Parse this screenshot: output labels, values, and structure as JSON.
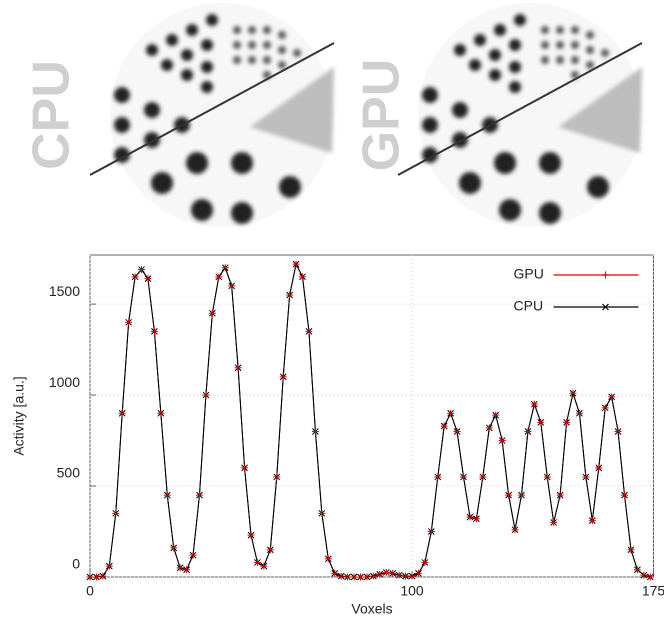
{
  "image_labels": [
    "CPU",
    "GPU"
  ],
  "chart_data": {
    "type": "line",
    "xlabel": "Voxels",
    "ylabel": "Activity [a.u.]",
    "x": [
      0,
      2,
      4,
      6,
      8,
      10,
      12,
      14,
      16,
      18,
      20,
      22,
      24,
      26,
      28,
      30,
      32,
      34,
      36,
      38,
      40,
      42,
      44,
      46,
      48,
      50,
      52,
      54,
      56,
      58,
      60,
      62,
      64,
      66,
      68,
      70,
      72,
      74,
      76,
      78,
      80,
      82,
      84,
      86,
      88,
      90,
      92,
      94,
      96,
      98,
      100,
      102,
      104,
      106,
      108,
      110,
      112,
      114,
      116,
      118,
      120,
      122,
      124,
      126,
      128,
      130,
      132,
      134,
      136,
      138,
      140,
      142,
      144,
      146,
      148,
      150,
      152,
      154,
      156,
      158,
      160,
      162,
      164,
      166,
      168,
      170,
      172,
      174
    ],
    "series": [
      {
        "name": "GPU",
        "color": "#e00000",
        "marker": "plus",
        "values": [
          0,
          0,
          5,
          60,
          350,
          900,
          1400,
          1650,
          1690,
          1640,
          1350,
          900,
          450,
          160,
          50,
          40,
          120,
          450,
          1000,
          1450,
          1650,
          1700,
          1600,
          1150,
          600,
          230,
          80,
          60,
          150,
          550,
          1100,
          1550,
          1720,
          1650,
          1350,
          800,
          350,
          100,
          20,
          5,
          0,
          0,
          0,
          0,
          5,
          15,
          25,
          20,
          10,
          5,
          5,
          20,
          80,
          250,
          550,
          830,
          900,
          800,
          550,
          330,
          320,
          550,
          820,
          890,
          750,
          450,
          260,
          450,
          800,
          950,
          850,
          550,
          300,
          450,
          850,
          1010,
          900,
          550,
          310,
          600,
          930,
          990,
          800,
          450,
          150,
          40,
          10,
          0
        ]
      },
      {
        "name": "CPU",
        "color": "#000000",
        "marker": "cross",
        "values": [
          0,
          0,
          5,
          60,
          350,
          900,
          1400,
          1650,
          1690,
          1640,
          1350,
          900,
          450,
          160,
          50,
          40,
          120,
          450,
          1000,
          1450,
          1650,
          1700,
          1600,
          1150,
          600,
          230,
          80,
          60,
          150,
          550,
          1100,
          1550,
          1720,
          1650,
          1350,
          800,
          350,
          100,
          20,
          5,
          0,
          0,
          0,
          0,
          5,
          15,
          25,
          20,
          10,
          5,
          5,
          20,
          80,
          250,
          550,
          830,
          900,
          800,
          550,
          330,
          320,
          550,
          820,
          890,
          750,
          450,
          260,
          450,
          800,
          950,
          850,
          550,
          300,
          450,
          850,
          1010,
          900,
          550,
          310,
          600,
          930,
          990,
          800,
          450,
          150,
          40,
          10,
          0
        ]
      }
    ],
    "xlim": [
      0,
      175
    ],
    "xticks": [
      0,
      100,
      175
    ],
    "ylim": [
      0,
      1770
    ],
    "yticks": [
      0,
      500,
      1000,
      1500
    ],
    "grid": true,
    "legend": "upper right"
  }
}
